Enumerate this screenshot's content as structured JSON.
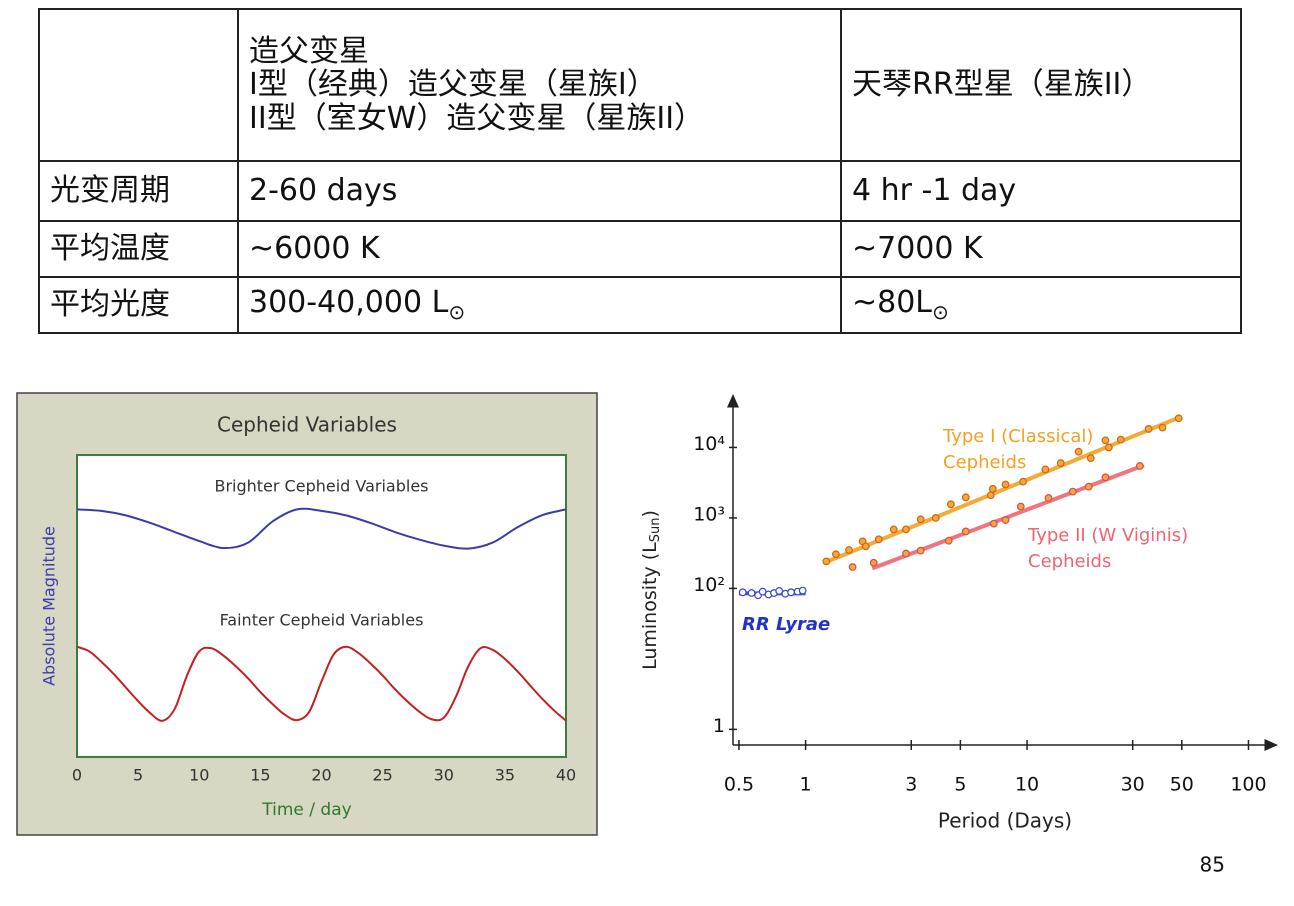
{
  "table": {
    "header": [
      [
        "造父变星",
        "I型（经典）造父变星（星族I）",
        "II型（室女W）造父变星（星族II）"
      ],
      [
        "天琴RR型星（星族II）"
      ]
    ],
    "rows": [
      [
        "光变周期",
        "2-60 days",
        "4 hr -1 day"
      ],
      [
        "平均温度",
        "~6000 K",
        "~7000 K"
      ],
      [
        "平均光度",
        {
          "text": "300-40,000 L",
          "sub": "⊙"
        },
        {
          "text": "~80L",
          "sub": "⊙"
        }
      ]
    ]
  },
  "chart_data": [
    {
      "type": "line",
      "title": "Cepheid Variables",
      "xlabel": "Time / day",
      "ylabel": "Absolute Magnitude",
      "xlim": [
        0,
        40
      ],
      "xticks": [
        0,
        5,
        10,
        15,
        20,
        25,
        30,
        35,
        40
      ],
      "ylim": [
        0,
        10
      ],
      "series": [
        {
          "name": "Brighter Cepheid Variables",
          "color": "#3b3bab",
          "x": [
            0,
            2,
            4,
            6,
            8,
            10,
            12,
            14,
            16,
            18,
            20,
            22,
            24,
            26,
            28,
            30,
            32,
            34,
            36,
            38,
            40
          ],
          "values": [
            8.2,
            8.15,
            8.0,
            7.75,
            7.45,
            7.15,
            6.92,
            7.1,
            7.8,
            8.2,
            8.15,
            8.0,
            7.75,
            7.45,
            7.2,
            7.0,
            6.9,
            7.1,
            7.6,
            8.0,
            8.2
          ]
        },
        {
          "name": "Fainter Cepheid Variables",
          "color": "#c42020",
          "x": [
            0,
            1,
            2,
            3,
            4,
            5,
            6,
            7,
            8,
            9,
            10,
            11,
            12,
            13,
            14,
            15,
            16,
            17,
            18,
            19,
            20,
            21,
            22,
            23,
            24,
            25,
            26,
            27,
            28,
            29,
            30,
            31,
            32,
            33,
            34,
            35,
            36,
            37,
            38,
            39,
            40
          ],
          "values": [
            3.65,
            3.5,
            3.15,
            2.75,
            2.3,
            1.85,
            1.45,
            1.2,
            1.6,
            2.7,
            3.5,
            3.6,
            3.35,
            3.0,
            2.6,
            2.15,
            1.75,
            1.4,
            1.22,
            1.5,
            2.5,
            3.4,
            3.65,
            3.45,
            3.1,
            2.7,
            2.25,
            1.85,
            1.5,
            1.25,
            1.3,
            2.0,
            3.0,
            3.6,
            3.55,
            3.25,
            2.85,
            2.4,
            1.95,
            1.55,
            1.2
          ]
        }
      ]
    },
    {
      "type": "scatter",
      "xlabel": "Period (Days)",
      "ylabel": {
        "text": "Luminosity (L",
        "sub": "Sun",
        "end": ")"
      },
      "xscale": "log",
      "yscale": "log",
      "xlim": [
        0.47,
        120
      ],
      "ylim": [
        0.6,
        40000
      ],
      "xticks": [
        0.5,
        1,
        3,
        5,
        10,
        30,
        50,
        100
      ],
      "yticks": [
        1,
        {
          "value": 100,
          "label": "10²"
        },
        {
          "value": 1000,
          "label": "10³"
        },
        {
          "value": 10000,
          "label": "10⁴"
        }
      ],
      "series": [
        {
          "name": [
            "RR Lyrae"
          ],
          "color": "#3344dd",
          "marker_fill": "#ffffff",
          "marker_edge": "#3344dd",
          "x": [
            0.52,
            0.57,
            0.61,
            0.64,
            0.68,
            0.72,
            0.76,
            0.81,
            0.86,
            0.92,
            0.97
          ],
          "values": [
            88,
            86,
            80,
            90,
            82,
            86,
            92,
            84,
            88,
            90,
            93
          ],
          "fit": {
            "x": [
              0.5,
              1.0
            ],
            "values": [
              85,
              85
            ]
          }
        },
        {
          "name": [
            "Type I (Classical)",
            "Cepheids"
          ],
          "color": "#f5a020",
          "marker_fill": "#f9a53a",
          "marker_edge": "#c86a10",
          "x": [
            1.24,
            1.37,
            1.57,
            1.81,
            1.87,
            2.14,
            2.5,
            2.84,
            3.31,
            3.87,
            4.53,
            5.29,
            6.86,
            7.0,
            8.0,
            9.6,
            12.1,
            14.2,
            17.1,
            19.4,
            22.6,
            23.4,
            26.5,
            35.4,
            40.9,
            48.4
          ],
          "values": [
            242,
            305,
            351,
            464,
            395,
            497,
            688,
            688,
            955,
            1000,
            1560,
            1960,
            2100,
            2590,
            2980,
            3270,
            4870,
            6000,
            8700,
            7050,
            12600,
            10000,
            12900,
            18300,
            19100,
            25900
          ],
          "fit": {
            "x": [
              1.22,
              49.5
            ],
            "values": [
              232,
              27200
            ]
          }
        },
        {
          "name": [
            "Type II (W Viginis)",
            "Cepheids"
          ],
          "color": "#ef6470",
          "marker_fill": "#f9a53a",
          "marker_edge": "#d05050",
          "x": [
            1.63,
            2.03,
            2.84,
            3.31,
            4.43,
            5.29,
            7.08,
            8.0,
            9.37,
            12.5,
            16.1,
            19.0,
            22.6,
            32.3
          ],
          "values": [
            201,
            231,
            312,
            343,
            475,
            643,
            830,
            933,
            1450,
            1920,
            2360,
            2780,
            3770,
            5460
          ],
          "fit": {
            "x": [
              2.0,
              33.7
            ],
            "values": [
              192,
              5580
            ]
          }
        }
      ]
    }
  ],
  "page_number": "85"
}
